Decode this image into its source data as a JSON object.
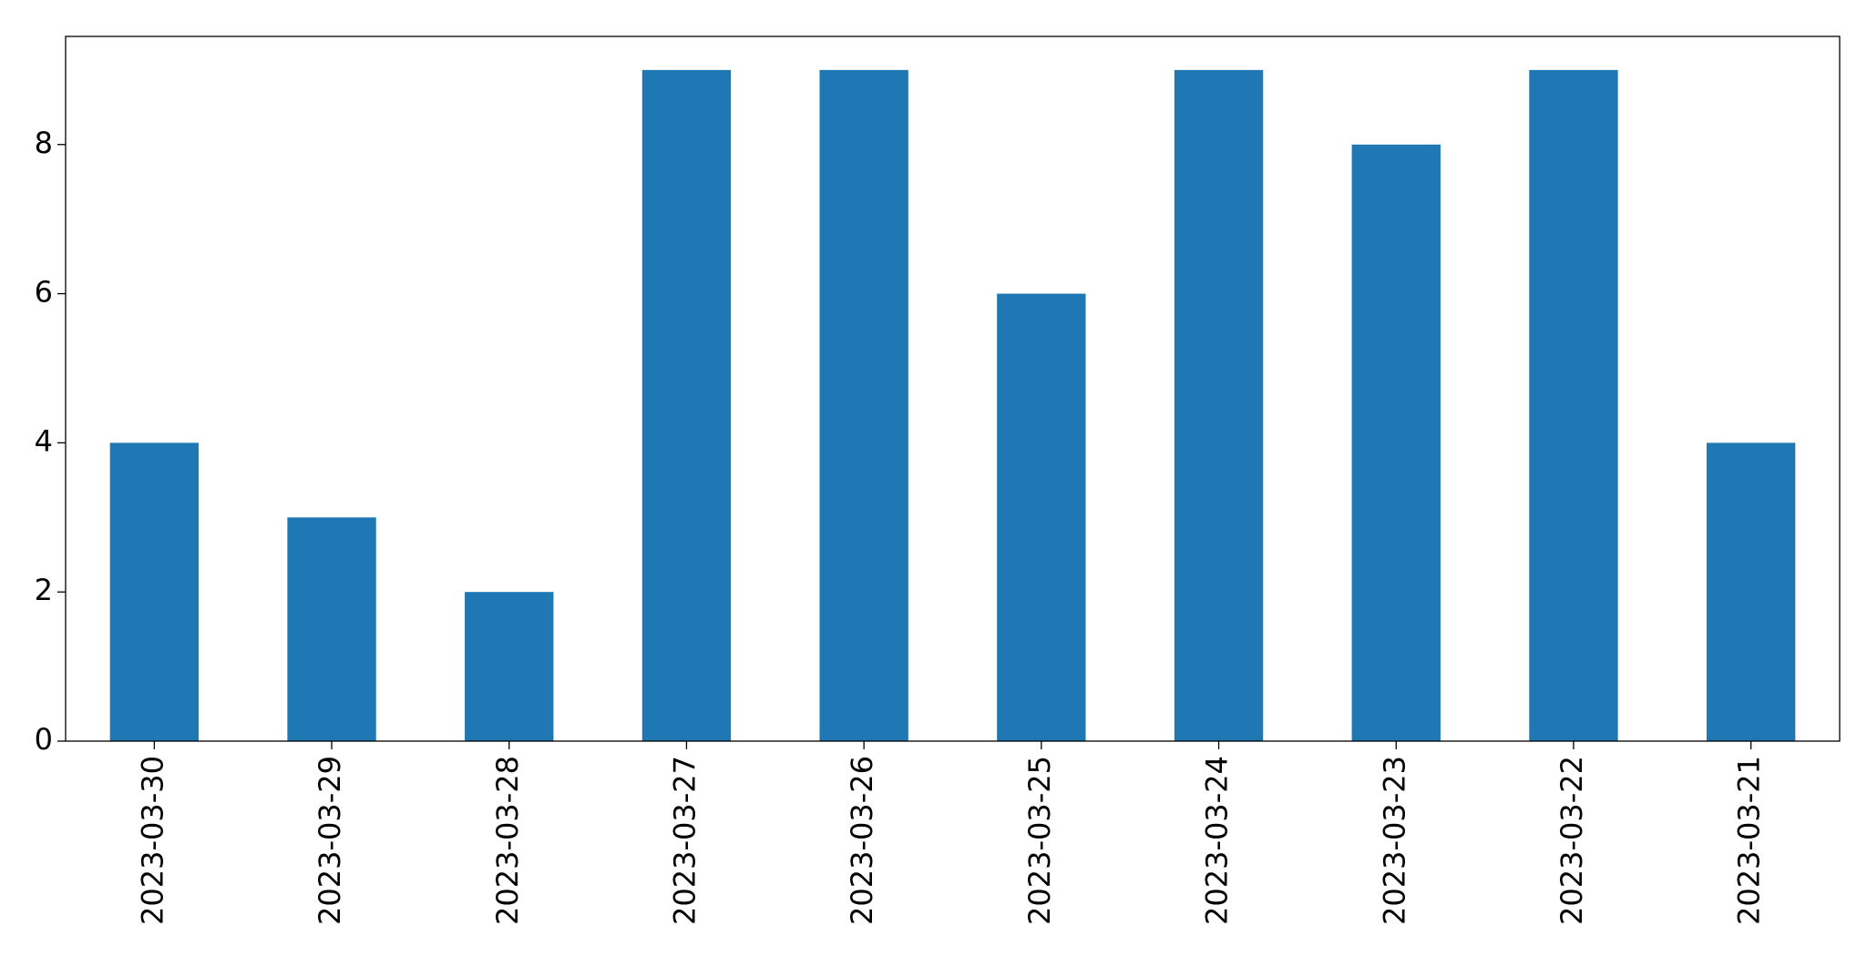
{
  "chart_data": {
    "type": "bar",
    "categories": [
      "2023-03-30",
      "2023-03-29",
      "2023-03-28",
      "2023-03-27",
      "2023-03-26",
      "2023-03-25",
      "2023-03-24",
      "2023-03-23",
      "2023-03-22",
      "2023-03-21"
    ],
    "values": [
      4,
      3,
      2,
      9,
      9,
      6,
      9,
      8,
      9,
      4
    ],
    "color": "#1f77b4",
    "ylim": [
      0,
      9.45
    ],
    "yticks": [
      0,
      2,
      4,
      6,
      8
    ],
    "grid": false
  }
}
